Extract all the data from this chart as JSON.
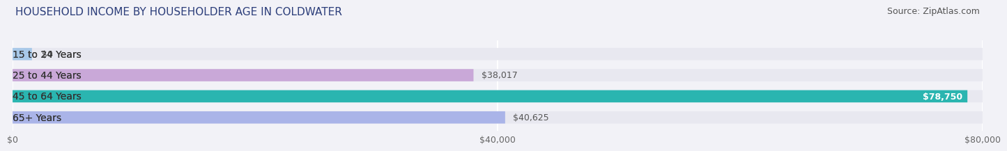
{
  "title": "HOUSEHOLD INCOME BY HOUSEHOLDER AGE IN COLDWATER",
  "source": "Source: ZipAtlas.com",
  "categories": [
    "15 to 24 Years",
    "25 to 44 Years",
    "45 to 64 Years",
    "65+ Years"
  ],
  "values": [
    0,
    38017,
    78750,
    40625
  ],
  "bar_colors": [
    "#a8c8e8",
    "#c9a8d8",
    "#2ab5b0",
    "#aab4e8"
  ],
  "bar_bg_color": "#e8e8f0",
  "background_color": "#f2f2f7",
  "value_labels": [
    "$0",
    "$38,017",
    "$78,750",
    "$40,625"
  ],
  "x_tick_labels": [
    "$0",
    "$40,000",
    "$80,000"
  ],
  "x_tick_values": [
    0,
    40000,
    80000
  ],
  "xlim": [
    0,
    80000
  ],
  "title_fontsize": 11,
  "source_fontsize": 9,
  "bar_label_fontsize": 9,
  "tick_label_fontsize": 9,
  "category_fontsize": 10,
  "bar_height": 0.58,
  "grid_color": "#ffffff",
  "label_white": "#78,750",
  "max_value": 78750
}
